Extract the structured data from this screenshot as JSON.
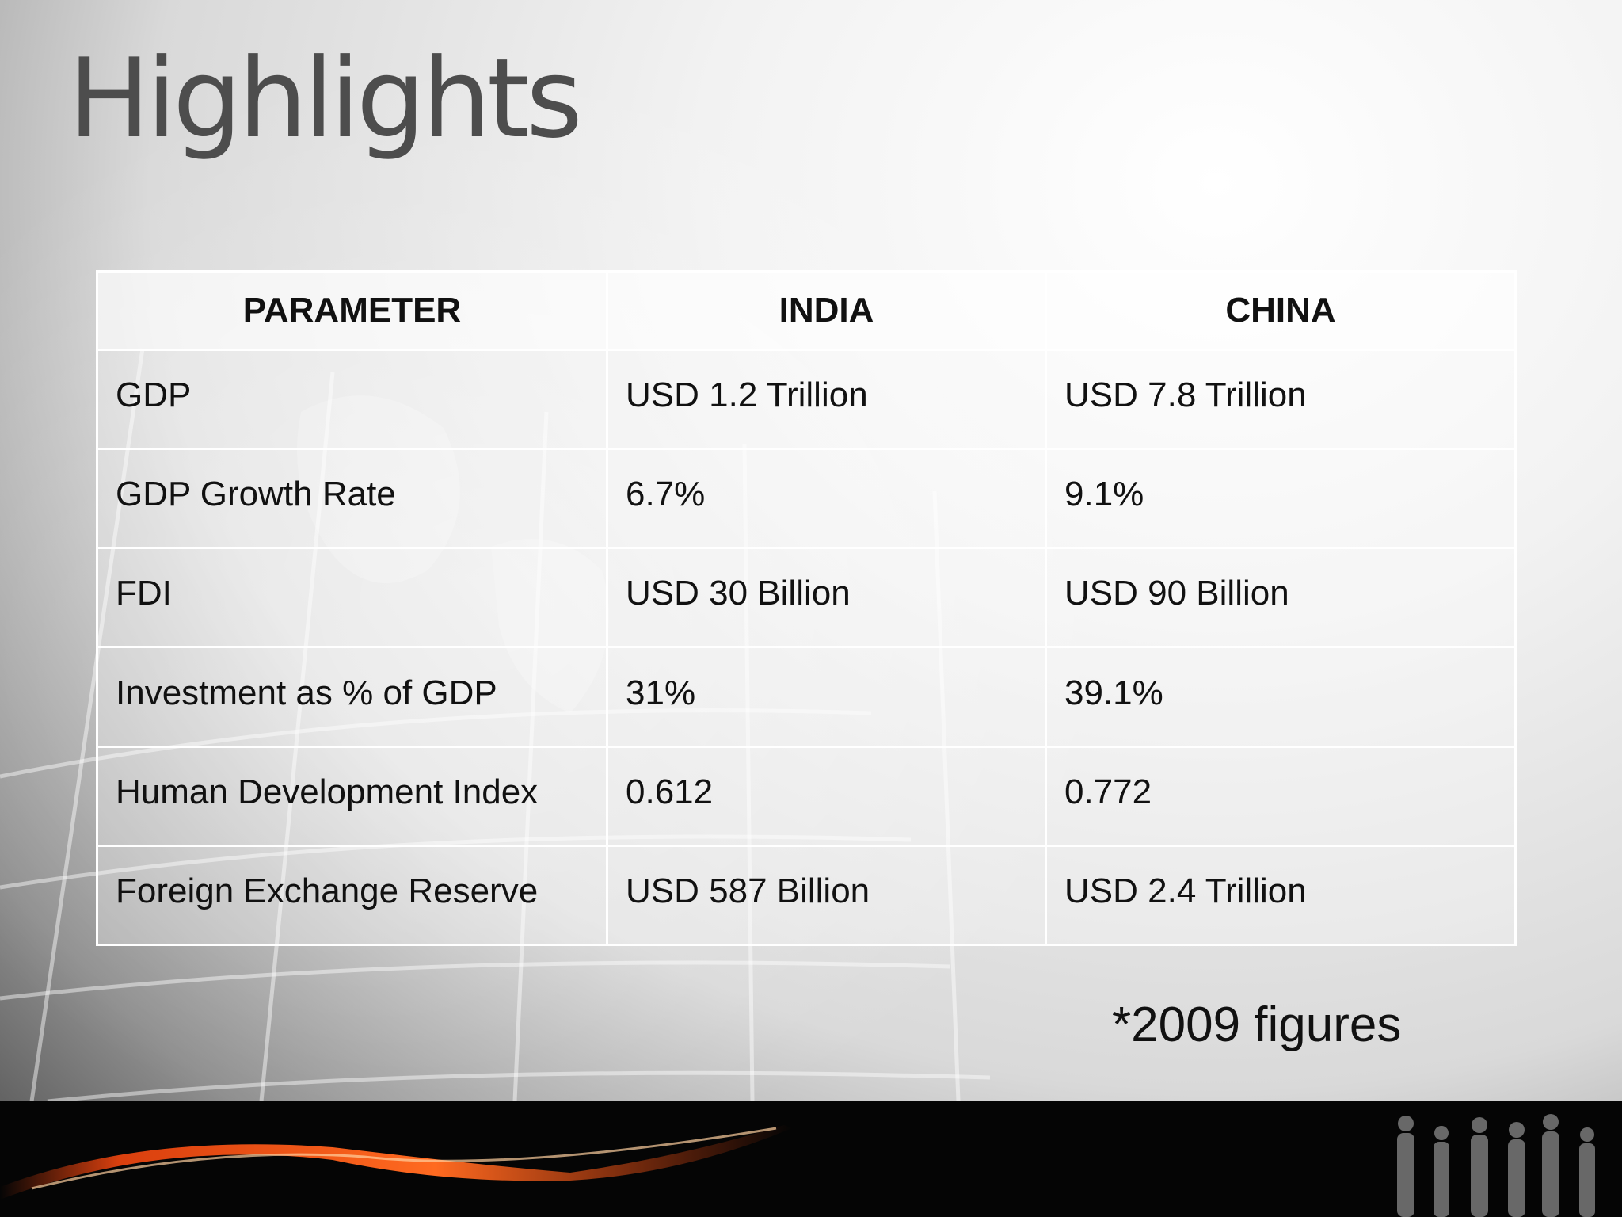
{
  "slide": {
    "title": "Highlights",
    "footnote": "*2009 figures"
  },
  "table": {
    "headers": [
      "PARAMETER",
      "INDIA",
      "CHINA"
    ],
    "rows": [
      [
        "GDP",
        "USD 1.2 Trillion",
        "USD 7.8 Trillion"
      ],
      [
        "GDP Growth Rate",
        "6.7%",
        "9.1%"
      ],
      [
        "FDI",
        "USD 30 Billion",
        "USD 90 Billion"
      ],
      [
        "Investment as % of GDP",
        "31%",
        "39.1%"
      ],
      [
        "Human Development Index",
        "0.612",
        "0.772"
      ],
      [
        "Foreign Exchange Reserve",
        "USD 587 Billion",
        "USD 2.4 Trillion"
      ]
    ]
  },
  "theme": {
    "accent": "#ff4a10",
    "footer": "#050505",
    "title_color": "#4d4d4d"
  }
}
